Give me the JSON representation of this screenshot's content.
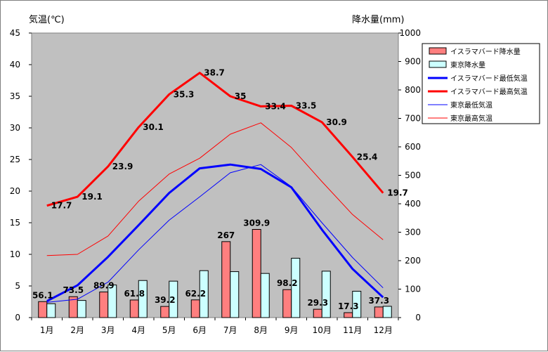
{
  "chart_data": {
    "type": "bar+line",
    "title": "",
    "ylabel_left": "気温(℃)",
    "ylabel_right": "降水量(mm)",
    "ylim_left": [
      0,
      45
    ],
    "ylim_right": [
      0,
      1000
    ],
    "yticks_left": [
      "0",
      "5",
      "10",
      "15",
      "20",
      "25",
      "30",
      "35",
      "40",
      "45"
    ],
    "yticks_right": [
      "0",
      "100",
      "200",
      "300",
      "400",
      "500",
      "600",
      "700",
      "800",
      "900",
      "1000"
    ],
    "grid": false,
    "legend_position": "top-right",
    "categories": [
      "1月",
      "2月",
      "3月",
      "4月",
      "5月",
      "6月",
      "7月",
      "8月",
      "9月",
      "10月",
      "11月",
      "12月"
    ],
    "bar_series": [
      {
        "name": "イスラマバード降水量",
        "axis": "right",
        "color": "#ff7f7f",
        "values": [
          56.1,
          73.5,
          89.9,
          61.8,
          39.2,
          62.2,
          267,
          309.9,
          98.2,
          29.3,
          17.3,
          37.3
        ],
        "labels": [
          "56.1",
          "73.5",
          "89.9",
          "61.8",
          "39.2",
          "62.2",
          "267",
          "309.9",
          "98.2",
          "29.3",
          "17.3",
          "37.3"
        ]
      },
      {
        "name": "東京降水量",
        "axis": "right",
        "color": "#ccffff",
        "values": [
          48.6,
          60.2,
          114.5,
          130.3,
          128.0,
          164.9,
          161.5,
          155.1,
          208.5,
          163.1,
          92.5,
          39.6
        ]
      }
    ],
    "line_series": [
      {
        "name": "イスラマバード最低気温",
        "axis": "left",
        "color": "#0000ff",
        "width": 3,
        "values": [
          2.6,
          5.1,
          9.6,
          14.6,
          19.7,
          23.6,
          24.2,
          23.5,
          20.6,
          13.9,
          7.7,
          3.2
        ]
      },
      {
        "name": "イスラマバード最高気温",
        "axis": "left",
        "color": "#ff0000",
        "width": 3,
        "values": [
          17.7,
          19.1,
          23.9,
          30.1,
          35.3,
          38.7,
          35,
          33.4,
          33.5,
          30.9,
          25.4,
          19.7
        ],
        "labels": [
          "17.7",
          "19.1",
          "23.9",
          "30.1",
          "35.3",
          "38.7",
          "35",
          "33.4",
          "33.5",
          "30.9",
          "25.4",
          "19.7"
        ]
      },
      {
        "name": "東京最低気温",
        "axis": "left",
        "color": "#0000ff",
        "width": 1,
        "values": [
          2.4,
          2.9,
          5.6,
          10.7,
          15.4,
          19.1,
          22.9,
          24.2,
          20.7,
          15.0,
          9.5,
          4.7
        ]
      },
      {
        "name": "東京最高気温",
        "axis": "left",
        "color": "#ff0000",
        "width": 1,
        "values": [
          9.8,
          10.0,
          12.9,
          18.4,
          22.7,
          25.2,
          29.0,
          30.8,
          26.9,
          21.5,
          16.3,
          12.3
        ]
      }
    ]
  }
}
